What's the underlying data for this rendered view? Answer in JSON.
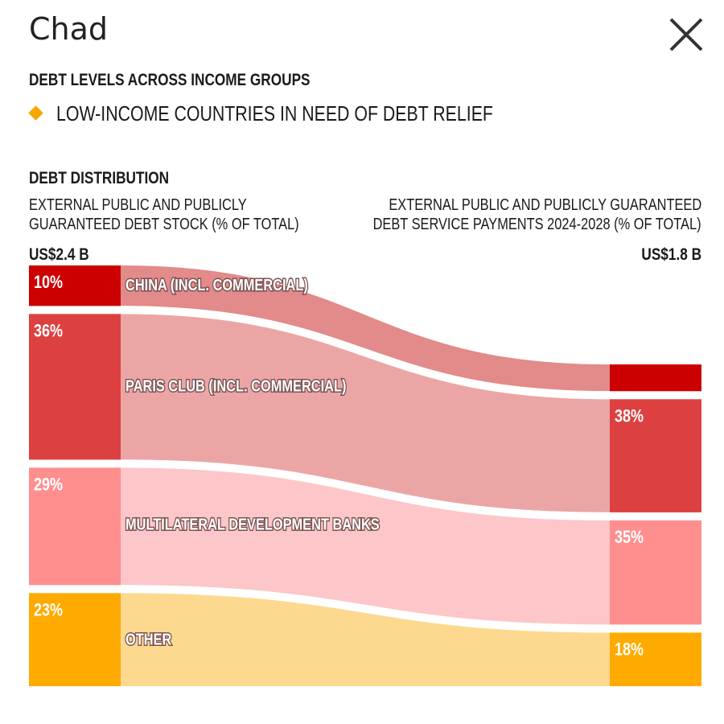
{
  "header": {
    "title": "Chad",
    "close_icon": "close-icon"
  },
  "sections": {
    "income_heading": "DEBT LEVELS ACROSS INCOME GROUPS",
    "income_legend_label": "LOW-INCOME COUNTRIES IN NEED OF DEBT RELIEF",
    "income_legend_color": "#f5a800",
    "distribution_heading": "DEBT DISTRIBUTION"
  },
  "columns": {
    "left_heading_line1": "EXTERNAL PUBLIC AND PUBLICLY",
    "left_heading_line2": "GUARANTEED DEBT STOCK (% OF TOTAL)",
    "right_heading_line1": "EXTERNAL PUBLIC AND PUBLICLY GUARANTEED",
    "right_heading_line2": "DEBT SERVICE PAYMENTS 2024-2028 (% OF TOTAL)",
    "left_total": "US$2.4 B",
    "right_total": "US$1.8 B"
  },
  "chart_data": {
    "type": "sankey",
    "left_label": "Debt stock (% of total)",
    "right_label": "Debt service payments 2024-2028 (% of total)",
    "categories": [
      "CHINA (INCL. COMMERCIAL)",
      "PARIS CLUB (INCL. COMMERCIAL)",
      "MULTILATERAL DEVELOPMENT BANKS",
      "OTHER"
    ],
    "left_values": [
      10,
      36,
      29,
      23
    ],
    "right_values": [
      9,
      38,
      35,
      18
    ],
    "left_labels": [
      "10%",
      "36%",
      "29%",
      "23%"
    ],
    "right_labels": [
      "",
      "38%",
      "35%",
      "18%"
    ],
    "node_colors": [
      "#cc0000",
      "#dd4040",
      "#ff8f8f",
      "#ffaa00"
    ],
    "flow_colors": [
      "#e38a8a",
      "#eca5a5",
      "#fdc6c8",
      "#fcd98e"
    ]
  }
}
